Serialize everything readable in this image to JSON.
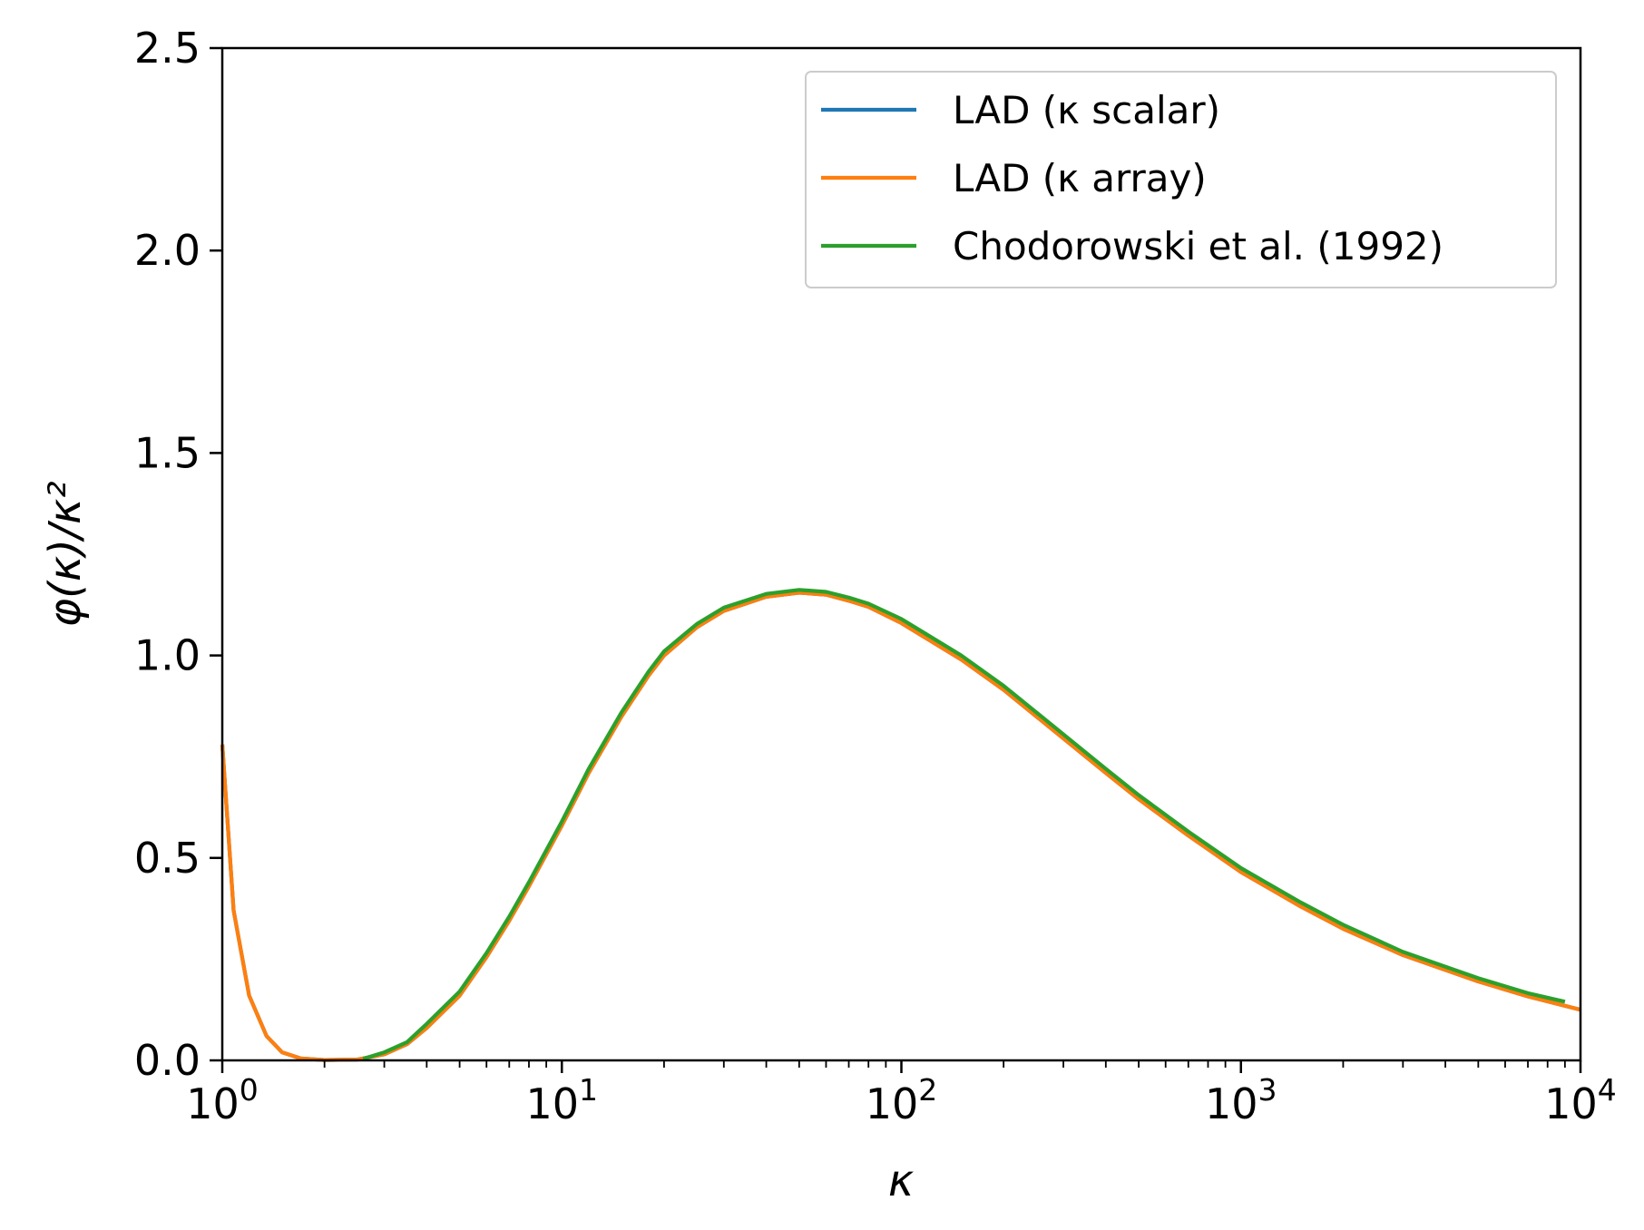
{
  "chart_data": {
    "type": "line",
    "xscale": "log",
    "xlim": [
      1,
      10000
    ],
    "ylim": [
      0,
      2.5
    ],
    "xlabel": "κ",
    "ylabel": "φ(κ)/κ²",
    "xticks": [
      {
        "value": 1,
        "base": "10",
        "exp": "0"
      },
      {
        "value": 10,
        "base": "10",
        "exp": "1"
      },
      {
        "value": 100,
        "base": "10",
        "exp": "2"
      },
      {
        "value": 1000,
        "base": "10",
        "exp": "3"
      },
      {
        "value": 10000,
        "base": "10",
        "exp": "4"
      }
    ],
    "yticks": [
      {
        "value": 0,
        "label": "0.0"
      },
      {
        "value": 0.5,
        "label": "0.5"
      },
      {
        "value": 1.0,
        "label": "1.0"
      },
      {
        "value": 1.5,
        "label": "1.5"
      },
      {
        "value": 2.0,
        "label": "2.0"
      },
      {
        "value": 2.5,
        "label": "2.5"
      }
    ],
    "grid": false,
    "legend_position": "top-right",
    "series": [
      {
        "name": "LAD (κ scalar)",
        "color": "#1f77b4",
        "x": [
          1.0,
          1.08,
          1.2,
          1.35,
          1.5,
          1.7,
          2.0,
          2.5,
          3.0,
          3.5,
          4.0,
          5.0,
          6.0,
          7.0,
          8.0,
          10,
          12,
          15,
          18,
          20,
          25,
          30,
          40,
          50,
          60,
          70,
          80,
          100,
          150,
          200,
          300,
          400,
          500,
          700,
          1000,
          1500,
          2000,
          3000,
          5000,
          7000,
          10000
        ],
        "y": [
          0.78,
          0.37,
          0.16,
          0.06,
          0.02,
          0.005,
          0.001,
          0.002,
          0.015,
          0.04,
          0.08,
          0.16,
          0.255,
          0.345,
          0.43,
          0.58,
          0.71,
          0.85,
          0.95,
          1.0,
          1.07,
          1.11,
          1.145,
          1.155,
          1.15,
          1.135,
          1.12,
          1.08,
          0.99,
          0.915,
          0.795,
          0.71,
          0.645,
          0.555,
          0.465,
          0.38,
          0.325,
          0.26,
          0.195,
          0.158,
          0.125
        ]
      },
      {
        "name": "LAD (κ array)",
        "color": "#ff7f0e",
        "x": [
          1.0,
          1.08,
          1.2,
          1.35,
          1.5,
          1.7,
          2.0,
          2.5,
          3.0,
          3.5,
          4.0,
          5.0,
          6.0,
          7.0,
          8.0,
          10,
          12,
          15,
          18,
          20,
          25,
          30,
          40,
          50,
          60,
          70,
          80,
          100,
          150,
          200,
          300,
          400,
          500,
          700,
          1000,
          1500,
          2000,
          3000,
          5000,
          7000,
          10000
        ],
        "y": [
          0.78,
          0.37,
          0.16,
          0.06,
          0.02,
          0.005,
          0.001,
          0.002,
          0.015,
          0.04,
          0.08,
          0.16,
          0.255,
          0.345,
          0.43,
          0.58,
          0.71,
          0.85,
          0.95,
          1.0,
          1.07,
          1.11,
          1.145,
          1.155,
          1.15,
          1.135,
          1.12,
          1.08,
          0.99,
          0.915,
          0.795,
          0.71,
          0.645,
          0.555,
          0.465,
          0.38,
          0.325,
          0.26,
          0.195,
          0.158,
          0.125
        ]
      },
      {
        "name": "Chodorowski et al. (1992)",
        "color": "#2ca02c",
        "x": [
          2.6,
          3.0,
          3.5,
          4.0,
          5.0,
          6.0,
          7.0,
          8.0,
          10,
          12,
          15,
          18,
          20,
          25,
          30,
          40,
          50,
          60,
          70,
          80,
          100,
          150,
          200,
          300,
          400,
          500,
          700,
          1000,
          1500,
          2000,
          3000,
          5000,
          7000,
          9000
        ],
        "y": [
          0.004,
          0.02,
          0.045,
          0.09,
          0.17,
          0.265,
          0.355,
          0.44,
          0.59,
          0.72,
          0.86,
          0.96,
          1.01,
          1.078,
          1.118,
          1.152,
          1.162,
          1.157,
          1.143,
          1.128,
          1.09,
          1.0,
          0.925,
          0.805,
          0.72,
          0.655,
          0.565,
          0.475,
          0.39,
          0.335,
          0.268,
          0.203,
          0.166,
          0.145
        ]
      }
    ]
  }
}
